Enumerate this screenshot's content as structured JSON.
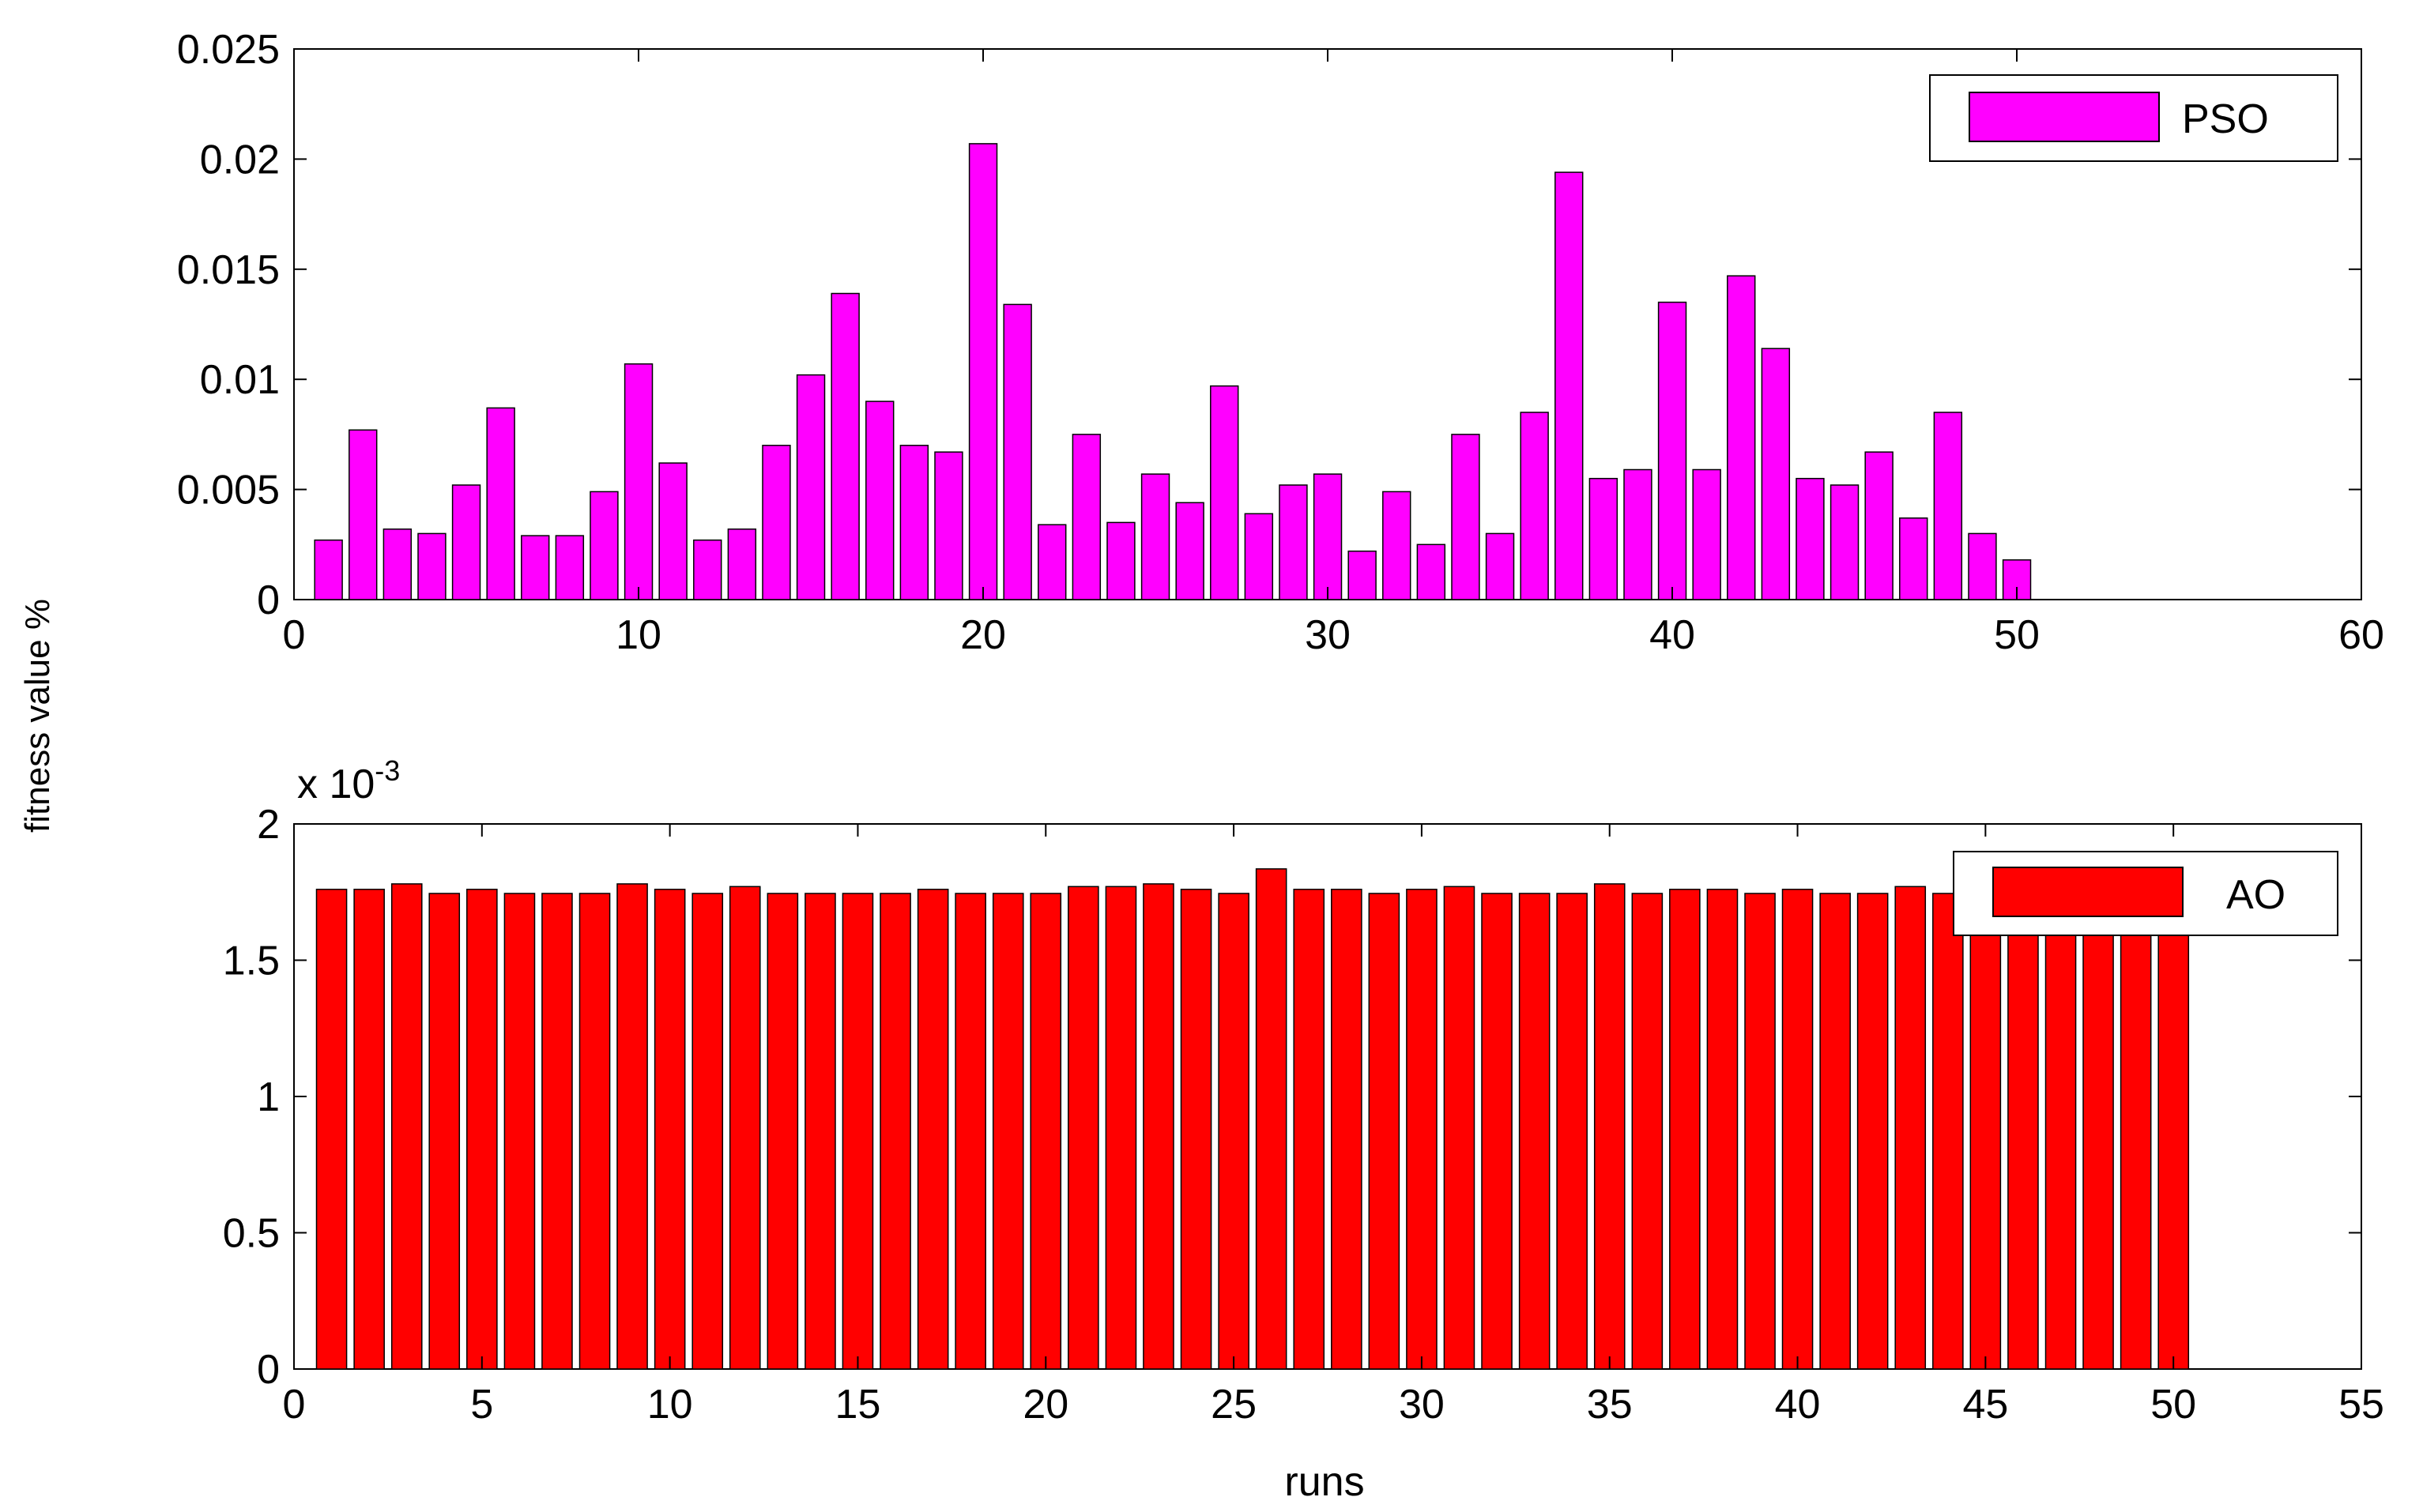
{
  "figure": {
    "shared_ylabel": "fitness value %",
    "xlabel": "runs"
  },
  "chart_data": [
    {
      "type": "bar",
      "legend_label": "PSO",
      "legend_position": "top-right",
      "bar_color": "#ff00ff",
      "x": [
        1,
        2,
        3,
        4,
        5,
        6,
        7,
        8,
        9,
        10,
        11,
        12,
        13,
        14,
        15,
        16,
        17,
        18,
        19,
        20,
        21,
        22,
        23,
        24,
        25,
        26,
        27,
        28,
        29,
        30,
        31,
        32,
        33,
        34,
        35,
        36,
        37,
        38,
        39,
        40,
        41,
        42,
        43,
        44,
        45,
        46,
        47,
        48,
        49,
        50
      ],
      "values": [
        0.0027,
        0.0077,
        0.0032,
        0.003,
        0.0052,
        0.0087,
        0.0029,
        0.0029,
        0.0049,
        0.0107,
        0.0062,
        0.0027,
        0.0032,
        0.007,
        0.0102,
        0.0139,
        0.009,
        0.007,
        0.0067,
        0.0207,
        0.0134,
        0.0034,
        0.0075,
        0.0035,
        0.0057,
        0.0044,
        0.0097,
        0.0039,
        0.0052,
        0.0057,
        0.0022,
        0.0049,
        0.0025,
        0.0075,
        0.003,
        0.0085,
        0.0194,
        0.0055,
        0.0059,
        0.0135,
        0.0059,
        0.0147,
        0.0114,
        0.0055,
        0.0052,
        0.0067,
        0.0037,
        0.0085,
        0.003,
        0.0018
      ],
      "xlim": [
        0,
        60
      ],
      "ylim": [
        0,
        0.025
      ],
      "xticks": [
        "0",
        "10",
        "20",
        "30",
        "40",
        "50",
        "60"
      ],
      "yticks": [
        "0",
        "0.005",
        "0.01",
        "0.015",
        "0.02",
        "0.025"
      ],
      "y_scale_label": ""
    },
    {
      "type": "bar",
      "legend_label": "AO",
      "legend_position": "top-right",
      "bar_color": "#ff0000",
      "x": [
        1,
        2,
        3,
        4,
        5,
        6,
        7,
        8,
        9,
        10,
        11,
        12,
        13,
        14,
        15,
        16,
        17,
        18,
        19,
        20,
        21,
        22,
        23,
        24,
        25,
        26,
        27,
        28,
        29,
        30,
        31,
        32,
        33,
        34,
        35,
        36,
        37,
        38,
        39,
        40,
        41,
        42,
        43,
        44,
        45,
        46,
        47,
        48,
        49,
        50
      ],
      "values": [
        1.76,
        1.76,
        1.78,
        1.745,
        1.76,
        1.745,
        1.745,
        1.745,
        1.78,
        1.76,
        1.745,
        1.77,
        1.745,
        1.745,
        1.745,
        1.745,
        1.76,
        1.745,
        1.745,
        1.745,
        1.77,
        1.77,
        1.78,
        1.76,
        1.745,
        1.835,
        1.76,
        1.76,
        1.745,
        1.76,
        1.77,
        1.745,
        1.745,
        1.745,
        1.78,
        1.745,
        1.76,
        1.76,
        1.745,
        1.76,
        1.745,
        1.745,
        1.77,
        1.745,
        1.76,
        1.745,
        1.76,
        1.745,
        1.76,
        1.76
      ],
      "value_multiplier_note": "values shown in units of 10^-3",
      "xlim": [
        0,
        55
      ],
      "ylim": [
        0,
        2
      ],
      "xticks": [
        "0",
        "5",
        "10",
        "15",
        "20",
        "25",
        "30",
        "35",
        "40",
        "45",
        "50",
        "55"
      ],
      "yticks": [
        "0",
        "0.5",
        "1",
        "1.5",
        "2"
      ],
      "y_scale_label": "x 10",
      "y_scale_exponent": "-3"
    }
  ]
}
